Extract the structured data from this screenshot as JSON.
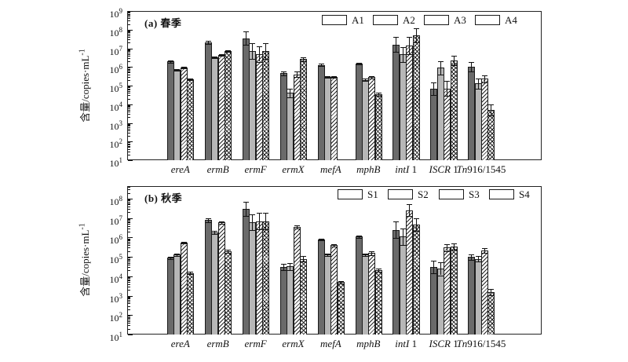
{
  "figure": {
    "background": "#ffffff"
  },
  "style_colors": {
    "solid_dark": "#6a6a6a",
    "solid_light": "#b7b7b7",
    "hatch_line": "#222222",
    "bar_border": "#1b1b1b",
    "axis": "#222222"
  },
  "category_labels": [
    {
      "it": "ereA",
      "rm": ""
    },
    {
      "it": "ermB",
      "rm": ""
    },
    {
      "it": "ermF",
      "rm": ""
    },
    {
      "it": "ermX",
      "rm": ""
    },
    {
      "it": "mefA",
      "rm": ""
    },
    {
      "it": "mphB",
      "rm": ""
    },
    {
      "it": "intI",
      "rm": " 1"
    },
    {
      "it": "ISCR",
      "rm": " 1"
    },
    {
      "it": "Tn",
      "rm": "916/1545"
    }
  ],
  "chart_data": [
    {
      "type": "bar",
      "title": "(a) 春季",
      "ylabel": "含量/copies·mL⁻¹",
      "ylabel_parts": {
        "text": "含量/copies·mL",
        "sup": "-1"
      },
      "yscale": "log",
      "ylim": [
        10,
        1000000000
      ],
      "y_ticks_exp": [
        1,
        9
      ],
      "y_top_exp": 9,
      "grid": false,
      "legend_position": "top-right-inside",
      "categories": [
        "ereA",
        "ermB",
        "ermF",
        "ermX",
        "mefA",
        "mphB",
        "intI 1",
        "ISCR 1",
        "Tn916/1545"
      ],
      "series": [
        {
          "name": "A1",
          "style": "solid-dark",
          "values": [
            2000000.0,
            20000000.0,
            35000000.0,
            450000.0,
            1300000.0,
            1500000.0,
            16000000.0,
            70000.0,
            1000000.0
          ],
          "err_top": [
            2300000.0,
            24000000.0,
            80000000.0,
            600000.0,
            1450000.0,
            1700000.0,
            40000000.0,
            150000.0,
            1800000.0
          ]
        },
        {
          "name": "A2",
          "style": "solid-light",
          "values": [
            700000.0,
            3200000.0,
            7000000.0,
            40000.0,
            300000.0,
            200000.0,
            4700000.0,
            900000.0,
            130000.0
          ],
          "err_top": [
            770000.0,
            3600000.0,
            18000000.0,
            70000.0,
            330000.0,
            230000.0,
            12000000.0,
            2000000.0,
            240000.0
          ]
        },
        {
          "name": "A3",
          "style": "hatch-diagonal",
          "values": [
            950000.0,
            4500000.0,
            5000000.0,
            400000.0,
            290000.0,
            280000.0,
            14000000.0,
            70000.0,
            230000.0
          ],
          "err_top": [
            1050000.0,
            5000000.0,
            13000000.0,
            550000.0,
            320000.0,
            330000.0,
            40000000.0,
            180000.0,
            350000.0
          ]
        },
        {
          "name": "A4",
          "style": "hatch-cross",
          "values": [
            220000.0,
            7000000.0,
            7000000.0,
            2600000.0,
            null,
            35000.0,
            50000000.0,
            2200000.0,
            5000.0
          ],
          "err_top": [
            250000.0,
            7600000.0,
            19000000.0,
            3400000.0,
            null,
            42000.0,
            120000000.0,
            4000000.0,
            10000.0
          ]
        }
      ]
    },
    {
      "type": "bar",
      "title": "(b) 秋季",
      "ylabel": "含量/copies·mL⁻¹",
      "ylabel_parts": {
        "text": "含量/copies·mL",
        "sup": "-1"
      },
      "yscale": "log",
      "ylim": [
        10,
        100000000
      ],
      "y_ticks_exp": [
        1,
        8
      ],
      "y_top_exp": 8.65,
      "grid": false,
      "legend_position": "top-right-inside",
      "categories": [
        "ereA",
        "ermB",
        "ermF",
        "ermX",
        "mefA",
        "mphB",
        "intI 1",
        "ISCR 1",
        "Tn916/1545"
      ],
      "series": [
        {
          "name": "S1",
          "style": "solid-dark",
          "values": [
            90000.0,
            8000000.0,
            30000000.0,
            30000.0,
            800000.0,
            1100000.0,
            2500000.0,
            30000.0,
            100000.0
          ],
          "err_top": [
            105000.0,
            10000000.0,
            70000000.0,
            45000.0,
            900000.0,
            1250000.0,
            6500000.0,
            65000.0,
            140000.0
          ]
        },
        {
          "name": "S2",
          "style": "solid-light",
          "values": [
            130000.0,
            1800000.0,
            6000000.0,
            32000.0,
            130000.0,
            130000.0,
            1100000.0,
            25000.0,
            80000.0
          ],
          "err_top": [
            145000.0,
            2200000.0,
            15000000.0,
            50000.0,
            150000.0,
            145000.0,
            3000000.0,
            55000.0,
            115000.0
          ]
        },
        {
          "name": "S3",
          "style": "hatch-diagonal",
          "values": [
            550000.0,
            6000000.0,
            7000000.0,
            3500000.0,
            400000.0,
            160000.0,
            25000000.0,
            300000.0,
            220000.0
          ],
          "err_top": [
            600000.0,
            7000000.0,
            18000000.0,
            4200000.0,
            460000.0,
            200000.0,
            50000000.0,
            450000.0,
            290000.0
          ]
        },
        {
          "name": "S4",
          "style": "hatch-cross",
          "values": [
            15000.0,
            200000.0,
            7000000.0,
            80000.0,
            5000.0,
            20000.0,
            4500000.0,
            350000.0,
            1500.0
          ],
          "err_top": [
            17000.0,
            240000.0,
            18000000.0,
            115000.0,
            5600.0,
            24000.0,
            9500000.0,
            500000.0,
            2200.0
          ]
        }
      ]
    }
  ]
}
